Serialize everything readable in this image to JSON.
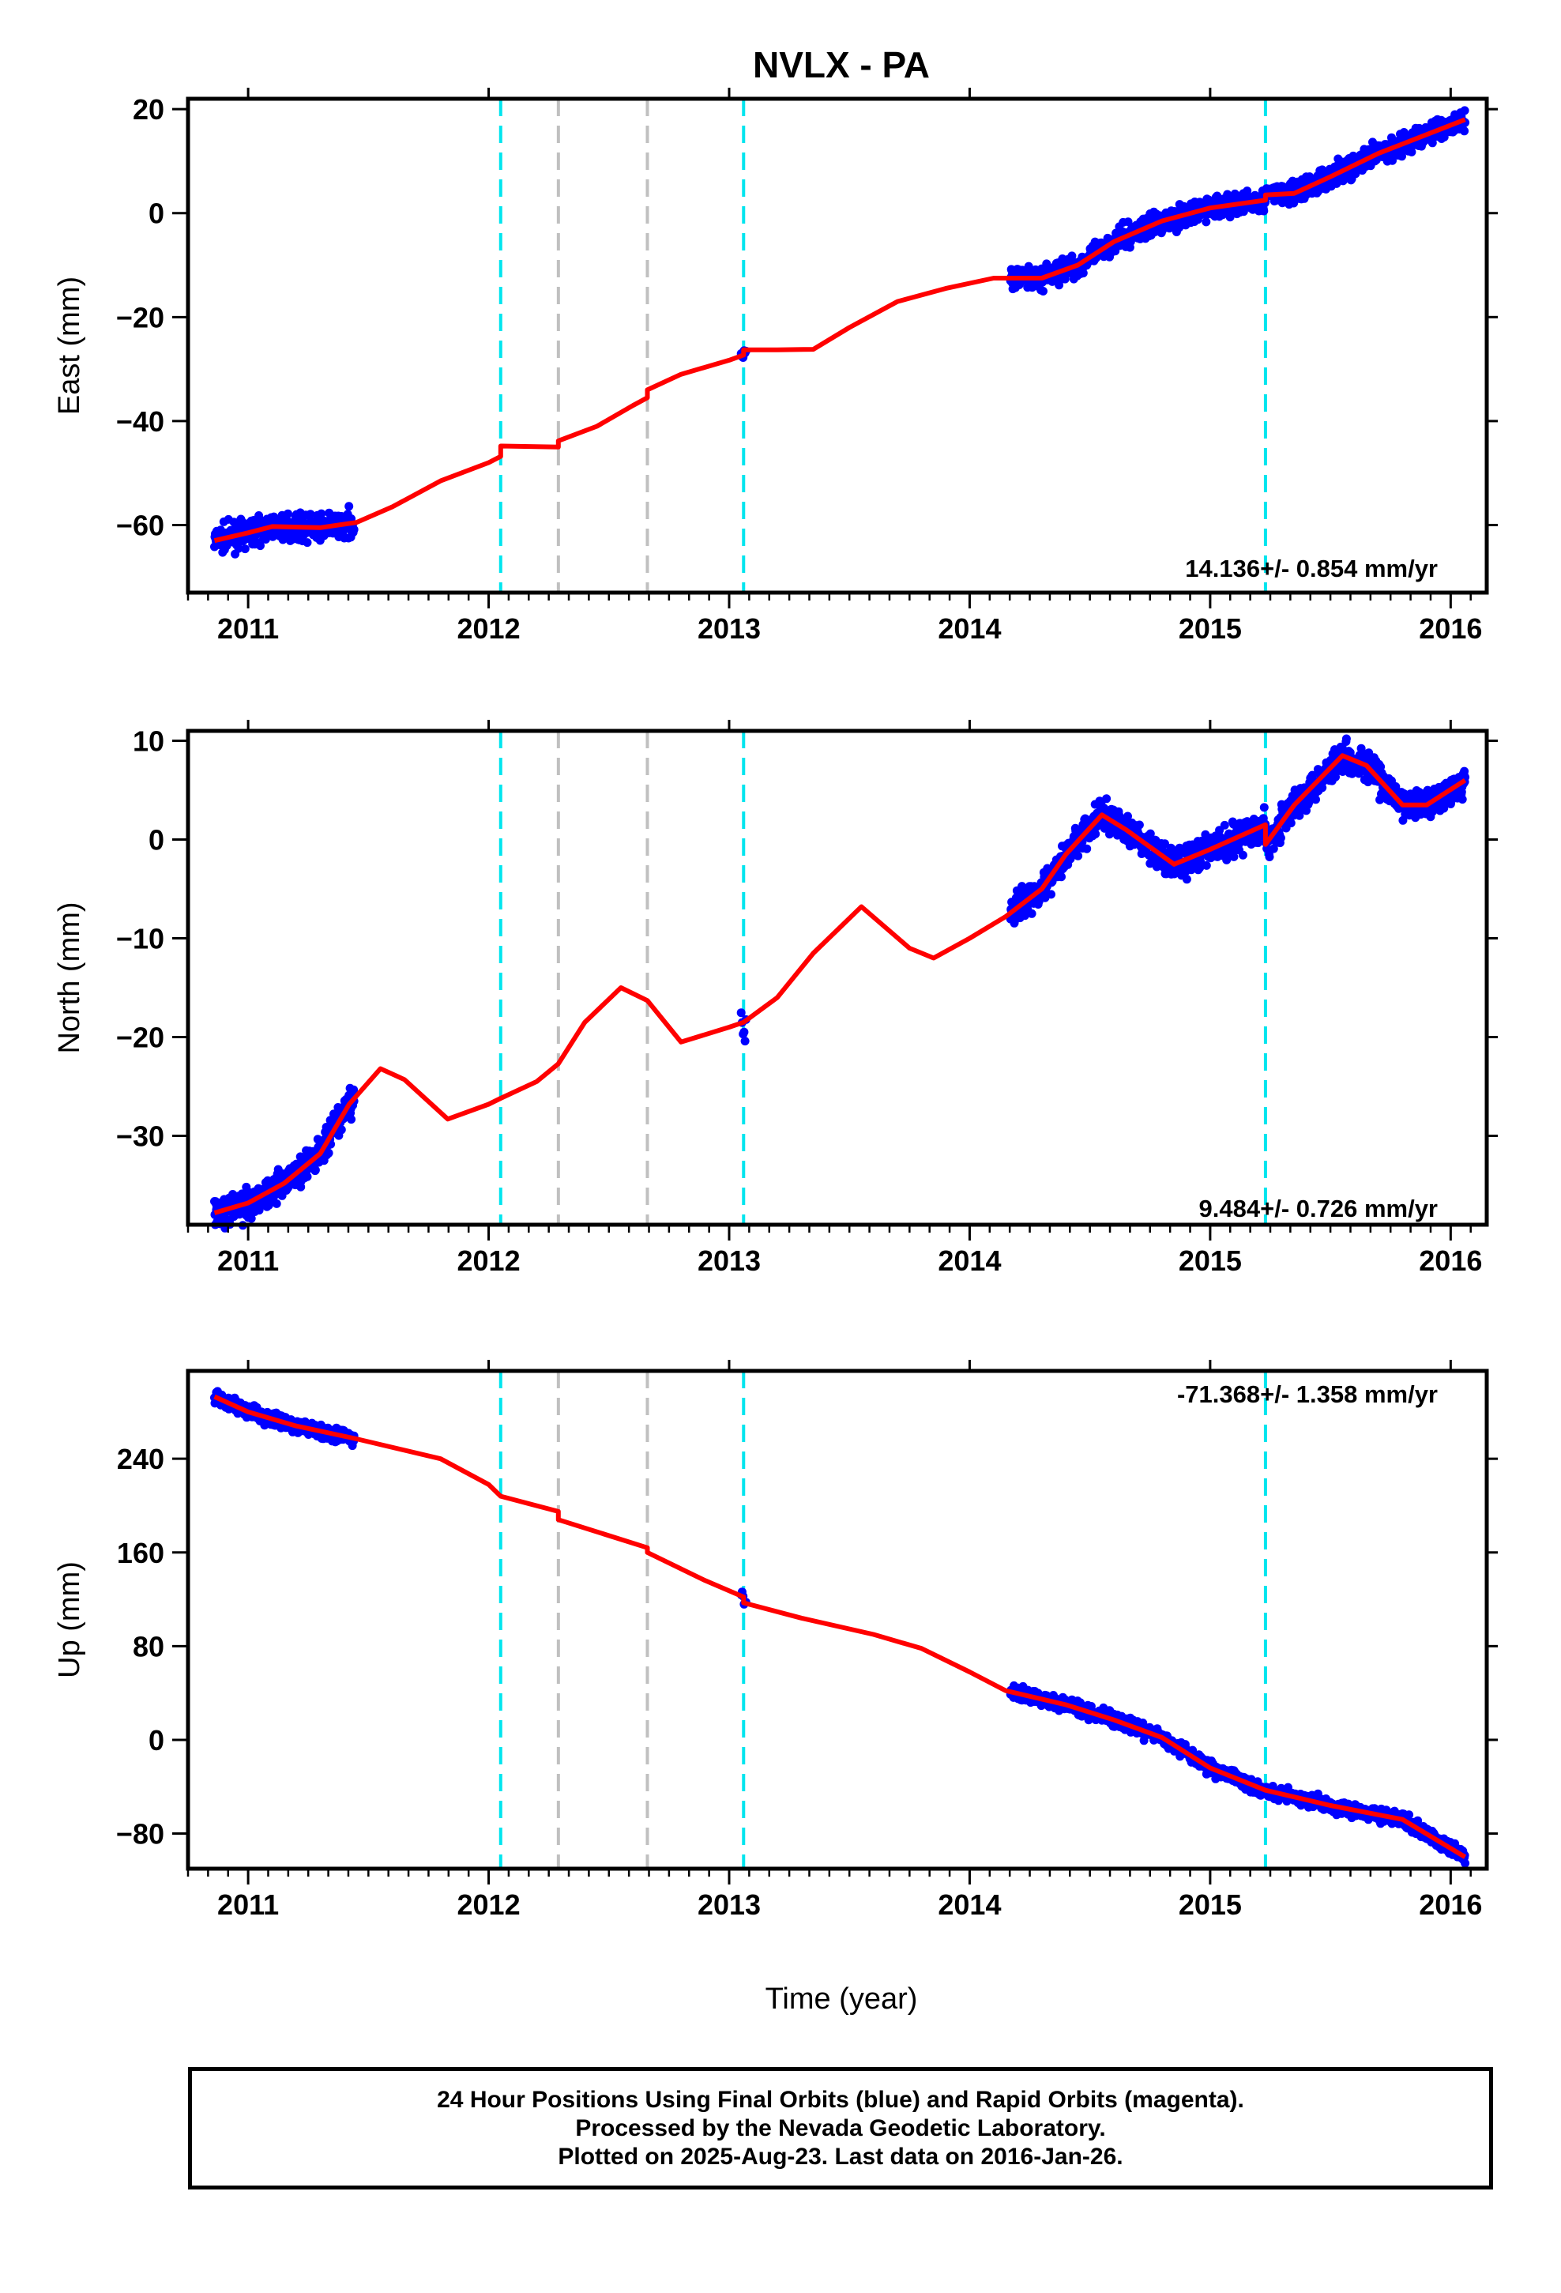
{
  "title": "NVLX - PA",
  "x_axis_label": "Time (year)",
  "colors": {
    "final_orbits": "#0000ff",
    "model": "#ff0000",
    "cyan_marker": "#00e5ee",
    "gray_marker": "#c0c0c0"
  },
  "footer": {
    "line1": "24 Hour Positions Using Final Orbits (blue) and Rapid Orbits (magenta).",
    "line2": "Processed by the Nevada Geodetic Laboratory.",
    "line3": "Plotted on 2025-Aug-23. Last data on 2016-Jan-26."
  },
  "chart_data": [
    {
      "type": "scatter",
      "name": "east",
      "ylabel": "East (mm)",
      "rate_label": "14.136+/- 0.854 mm/yr",
      "xlim": [
        2010.75,
        2016.15
      ],
      "ylim": [
        -73,
        22
      ],
      "x_ticks": [
        2011,
        2012,
        2013,
        2014,
        2015,
        2016
      ],
      "y_ticks": [
        -60,
        -40,
        -20,
        0,
        20
      ],
      "cyan_lines": [
        2012.05,
        2013.06,
        2015.23
      ],
      "gray_lines": [
        2012.29,
        2012.66
      ],
      "model": [
        [
          2010.86,
          -63
        ],
        [
          2011.0,
          -61.5
        ],
        [
          2011.1,
          -60.3
        ],
        [
          2011.3,
          -60.5
        ],
        [
          2011.45,
          -59.5
        ],
        [
          2011.6,
          -56.5
        ],
        [
          2011.8,
          -51.5
        ],
        [
          2012.0,
          -48
        ],
        [
          2012.05,
          -46.8
        ],
        [
          2012.05,
          -44.8
        ],
        [
          2012.29,
          -45
        ],
        [
          2012.29,
          -43.8
        ],
        [
          2012.45,
          -41
        ],
        [
          2012.6,
          -37
        ],
        [
          2012.66,
          -35.5
        ],
        [
          2012.66,
          -34
        ],
        [
          2012.8,
          -31
        ],
        [
          2013.0,
          -28.3
        ],
        [
          2013.06,
          -27.3
        ],
        [
          2013.06,
          -26.3
        ],
        [
          2013.2,
          -26.3
        ],
        [
          2013.35,
          -26.2
        ],
        [
          2013.5,
          -22
        ],
        [
          2013.7,
          -17
        ],
        [
          2013.9,
          -14.5
        ],
        [
          2014.1,
          -12.5
        ],
        [
          2014.3,
          -12.5
        ],
        [
          2014.45,
          -10
        ],
        [
          2014.6,
          -5.5
        ],
        [
          2014.8,
          -1.5
        ],
        [
          2015.0,
          1
        ],
        [
          2015.23,
          2.5
        ],
        [
          2015.23,
          3.5
        ],
        [
          2015.35,
          3.8
        ],
        [
          2015.5,
          7
        ],
        [
          2015.7,
          11.5
        ],
        [
          2016.06,
          18
        ]
      ],
      "data_segments": [
        {
          "x": [
            2010.86,
            2011.44
          ],
          "amp": 1.7,
          "n": 360
        },
        {
          "x": [
            2013.05,
            2013.07
          ],
          "amp": 1.0,
          "n": 6
        },
        {
          "x": [
            2014.17,
            2016.06
          ],
          "amp": 1.5,
          "n": 1200
        }
      ]
    },
    {
      "type": "scatter",
      "name": "north",
      "ylabel": "North (mm)",
      "rate_label": "9.484+/- 0.726 mm/yr",
      "xlim": [
        2010.75,
        2016.15
      ],
      "ylim": [
        -39,
        11
      ],
      "x_ticks": [
        2011,
        2012,
        2013,
        2014,
        2015,
        2016
      ],
      "y_ticks": [
        -30,
        -20,
        -10,
        0,
        10
      ],
      "cyan_lines": [
        2012.05,
        2013.06,
        2015.23
      ],
      "gray_lines": [
        2012.29,
        2012.66
      ],
      "model": [
        [
          2010.86,
          -37.8
        ],
        [
          2011.0,
          -36.8
        ],
        [
          2011.15,
          -34.8
        ],
        [
          2011.3,
          -31.8
        ],
        [
          2011.42,
          -26.8
        ],
        [
          2011.55,
          -23.2
        ],
        [
          2011.65,
          -24.3
        ],
        [
          2011.83,
          -28.3
        ],
        [
          2012.0,
          -26.8
        ],
        [
          2012.05,
          -26.2
        ],
        [
          2012.2,
          -24.5
        ],
        [
          2012.29,
          -22.7
        ],
        [
          2012.4,
          -18.5
        ],
        [
          2012.55,
          -15
        ],
        [
          2012.66,
          -16.3
        ],
        [
          2012.8,
          -20.5
        ],
        [
          2013.0,
          -19
        ],
        [
          2013.06,
          -18.5
        ],
        [
          2013.2,
          -16
        ],
        [
          2013.35,
          -11.5
        ],
        [
          2013.55,
          -6.8
        ],
        [
          2013.75,
          -11
        ],
        [
          2013.85,
          -12
        ],
        [
          2014.0,
          -10
        ],
        [
          2014.15,
          -7.8
        ],
        [
          2014.3,
          -5
        ],
        [
          2014.4,
          -1.5
        ],
        [
          2014.55,
          2.5
        ],
        [
          2014.65,
          1
        ],
        [
          2014.85,
          -2.5
        ],
        [
          2015.0,
          -1
        ],
        [
          2015.23,
          1.5
        ],
        [
          2015.23,
          -0.5
        ],
        [
          2015.35,
          3.5
        ],
        [
          2015.55,
          8.5
        ],
        [
          2015.65,
          7.5
        ],
        [
          2015.8,
          3.5
        ],
        [
          2015.9,
          3.5
        ],
        [
          2016.06,
          6
        ]
      ],
      "data_segments": [
        {
          "x": [
            2010.86,
            2011.44
          ],
          "amp": 1.1,
          "n": 360
        },
        {
          "x": [
            2013.05,
            2013.07
          ],
          "amp": 1.4,
          "n": 6
        },
        {
          "x": [
            2014.17,
            2016.06
          ],
          "amp": 1.1,
          "n": 1200
        }
      ]
    },
    {
      "type": "scatter",
      "name": "up",
      "ylabel": "Up (mm)",
      "rate_label": "-71.368+/- 1.358 mm/yr",
      "xlim": [
        2010.75,
        2016.15
      ],
      "ylim": [
        -110,
        315
      ],
      "x_ticks": [
        2011,
        2012,
        2013,
        2014,
        2015,
        2016
      ],
      "y_ticks": [
        -80,
        0,
        80,
        160,
        240
      ],
      "cyan_lines": [
        2012.05,
        2013.06,
        2015.23
      ],
      "gray_lines": [
        2012.29,
        2012.66
      ],
      "model": [
        [
          2010.86,
          293
        ],
        [
          2011.0,
          280
        ],
        [
          2011.2,
          268
        ],
        [
          2011.45,
          257
        ],
        [
          2011.8,
          240
        ],
        [
          2012.0,
          218
        ],
        [
          2012.05,
          208
        ],
        [
          2012.29,
          195
        ],
        [
          2012.29,
          188
        ],
        [
          2012.66,
          164
        ],
        [
          2012.66,
          160
        ],
        [
          2012.9,
          136
        ],
        [
          2013.06,
          122
        ],
        [
          2013.06,
          117
        ],
        [
          2013.3,
          104
        ],
        [
          2013.6,
          90
        ],
        [
          2013.8,
          78
        ],
        [
          2014.0,
          58
        ],
        [
          2014.15,
          42
        ],
        [
          2014.4,
          30
        ],
        [
          2014.6,
          17
        ],
        [
          2014.8,
          2
        ],
        [
          2015.0,
          -24
        ],
        [
          2015.23,
          -43
        ],
        [
          2015.5,
          -56
        ],
        [
          2015.8,
          -68
        ],
        [
          2016.06,
          -100
        ]
      ],
      "data_segments": [
        {
          "x": [
            2010.86,
            2011.44
          ],
          "amp": 4,
          "n": 360
        },
        {
          "x": [
            2013.05,
            2013.07
          ],
          "amp": 3,
          "n": 6
        },
        {
          "x": [
            2014.17,
            2016.06
          ],
          "amp": 4,
          "n": 1200
        }
      ]
    }
  ]
}
